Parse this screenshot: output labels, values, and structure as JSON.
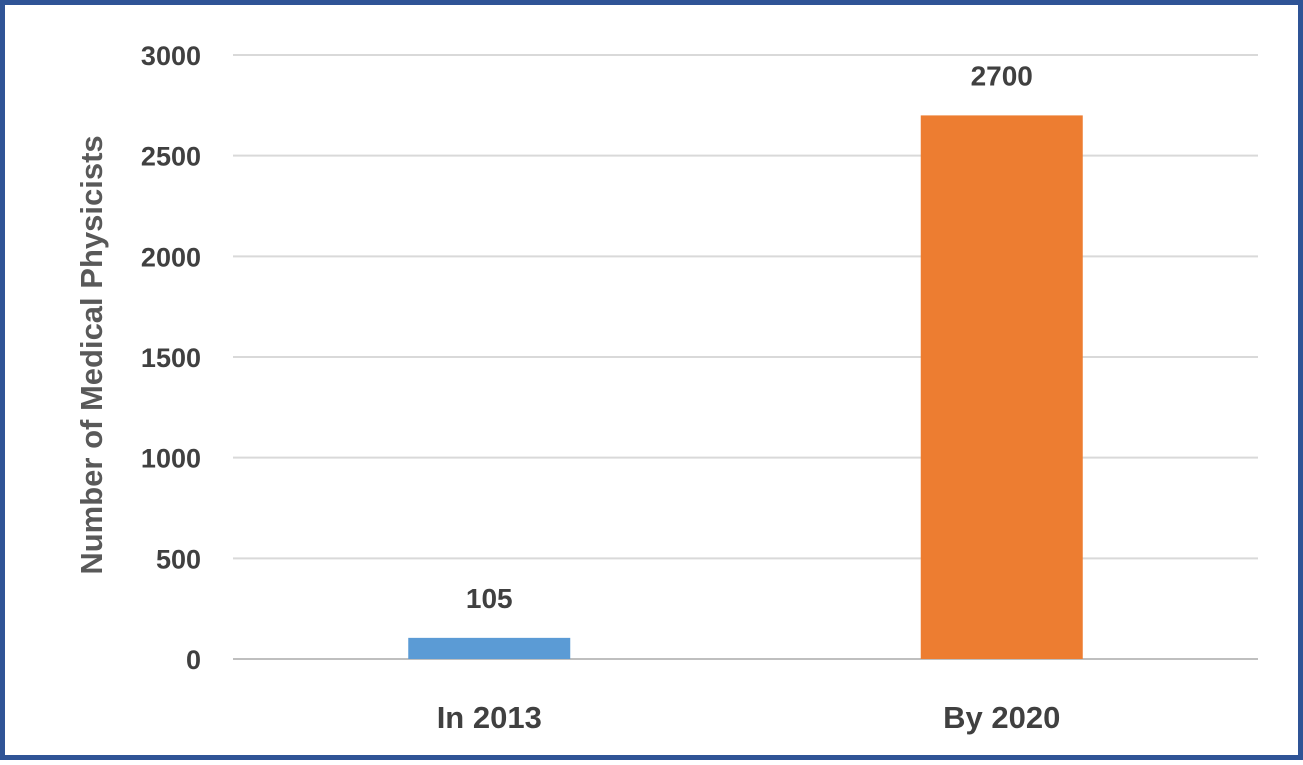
{
  "chart_data": {
    "type": "bar",
    "categories": [
      "In 2013",
      "By 2020"
    ],
    "values": [
      105,
      2700
    ],
    "data_labels": [
      "105",
      "2700"
    ],
    "title": "",
    "xlabel": "",
    "ylabel": "Number of Medical Physicists",
    "ylim": [
      0,
      3000
    ],
    "yticks": [
      "0",
      "500",
      "1000",
      "1500",
      "2000",
      "2500",
      "3000"
    ],
    "colors": [
      "#5b9bd5",
      "#ed7d31"
    ],
    "grid": true,
    "legend": "none"
  },
  "frame": {
    "border_color": "#2f5496"
  }
}
